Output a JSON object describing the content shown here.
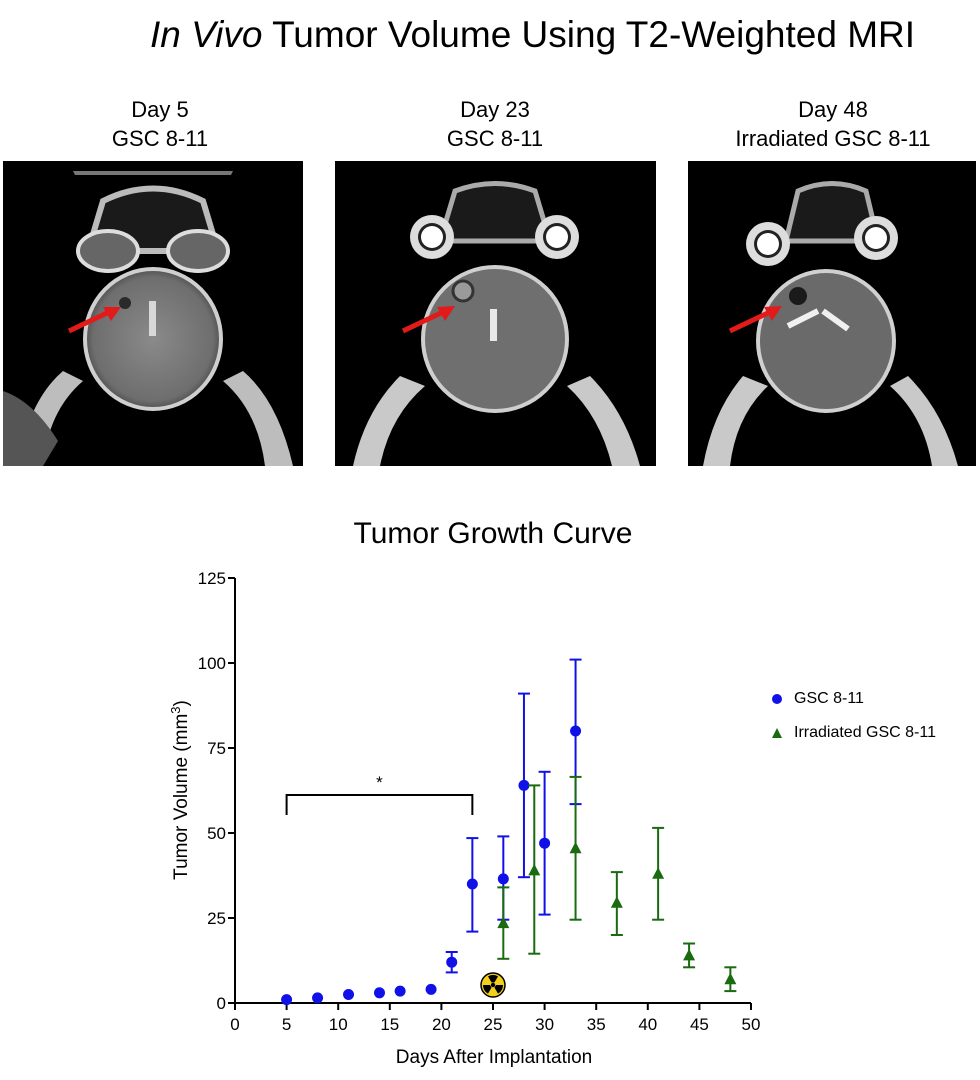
{
  "header": {
    "title_italic": "In Vivo",
    "title_rest": " Tumor Volume Using T2-Weighted MRI"
  },
  "panels": [
    {
      "day": "Day 5",
      "group": "GSC 8-11"
    },
    {
      "day": "Day 23",
      "group": "GSC 8-11"
    },
    {
      "day": "Day 48",
      "group": "Irradiated GSC 8-11"
    }
  ],
  "colors": {
    "gsc": "#1010e8",
    "irradiated": "#1a6b10",
    "arrow": "#e21a1a",
    "radiation_badge": "#f2d01c"
  },
  "chart_data": {
    "type": "scatter",
    "title": "Tumor Growth Curve",
    "xlabel": "Days After Implantation",
    "ylabel_main": "Tumor Volume (mm",
    "ylabel_sup": "3",
    "ylabel_end": ")",
    "xlim": [
      0,
      50
    ],
    "ylim": [
      0,
      125
    ],
    "xticks": [
      "0",
      "5",
      "10",
      "15",
      "20",
      "25",
      "30",
      "35",
      "40",
      "45",
      "50"
    ],
    "yticks": [
      "0",
      "25",
      "50",
      "75",
      "100",
      "125"
    ],
    "significance_label": "*",
    "significance_bracket": [
      5,
      23
    ],
    "radiation_day": 25,
    "series": [
      {
        "name": "GSC 8-11",
        "marker": "circle",
        "points": [
          {
            "x": 5,
            "y": 1,
            "lo": 1,
            "hi": 1
          },
          {
            "x": 8,
            "y": 1.5,
            "lo": 1.5,
            "hi": 1.5
          },
          {
            "x": 11,
            "y": 2.5,
            "lo": 2.5,
            "hi": 2.5
          },
          {
            "x": 14,
            "y": 3,
            "lo": 3,
            "hi": 3
          },
          {
            "x": 16,
            "y": 3.5,
            "lo": 3.5,
            "hi": 3.5
          },
          {
            "x": 19,
            "y": 4,
            "lo": 4,
            "hi": 4
          },
          {
            "x": 21,
            "y": 12,
            "lo": 9,
            "hi": 15
          },
          {
            "x": 23,
            "y": 35,
            "lo": 21,
            "hi": 48.5
          },
          {
            "x": 26,
            "y": 36.5,
            "lo": 24.5,
            "hi": 49
          },
          {
            "x": 28,
            "y": 64,
            "lo": 37,
            "hi": 91
          },
          {
            "x": 30,
            "y": 47,
            "lo": 26,
            "hi": 68
          },
          {
            "x": 33,
            "y": 80,
            "lo": 58.5,
            "hi": 101
          }
        ]
      },
      {
        "name": "Irradiated GSC 8-11",
        "marker": "triangle",
        "points": [
          {
            "x": 26,
            "y": 23.5,
            "lo": 13,
            "hi": 34
          },
          {
            "x": 29,
            "y": 39,
            "lo": 14.5,
            "hi": 64
          },
          {
            "x": 33,
            "y": 45.5,
            "lo": 24.5,
            "hi": 66.5
          },
          {
            "x": 37,
            "y": 29.5,
            "lo": 20,
            "hi": 38.5
          },
          {
            "x": 41,
            "y": 38,
            "lo": 24.5,
            "hi": 51.5
          },
          {
            "x": 44,
            "y": 14,
            "lo": 10.5,
            "hi": 17.5
          },
          {
            "x": 48,
            "y": 7,
            "lo": 3.5,
            "hi": 10.5
          }
        ]
      }
    ]
  }
}
